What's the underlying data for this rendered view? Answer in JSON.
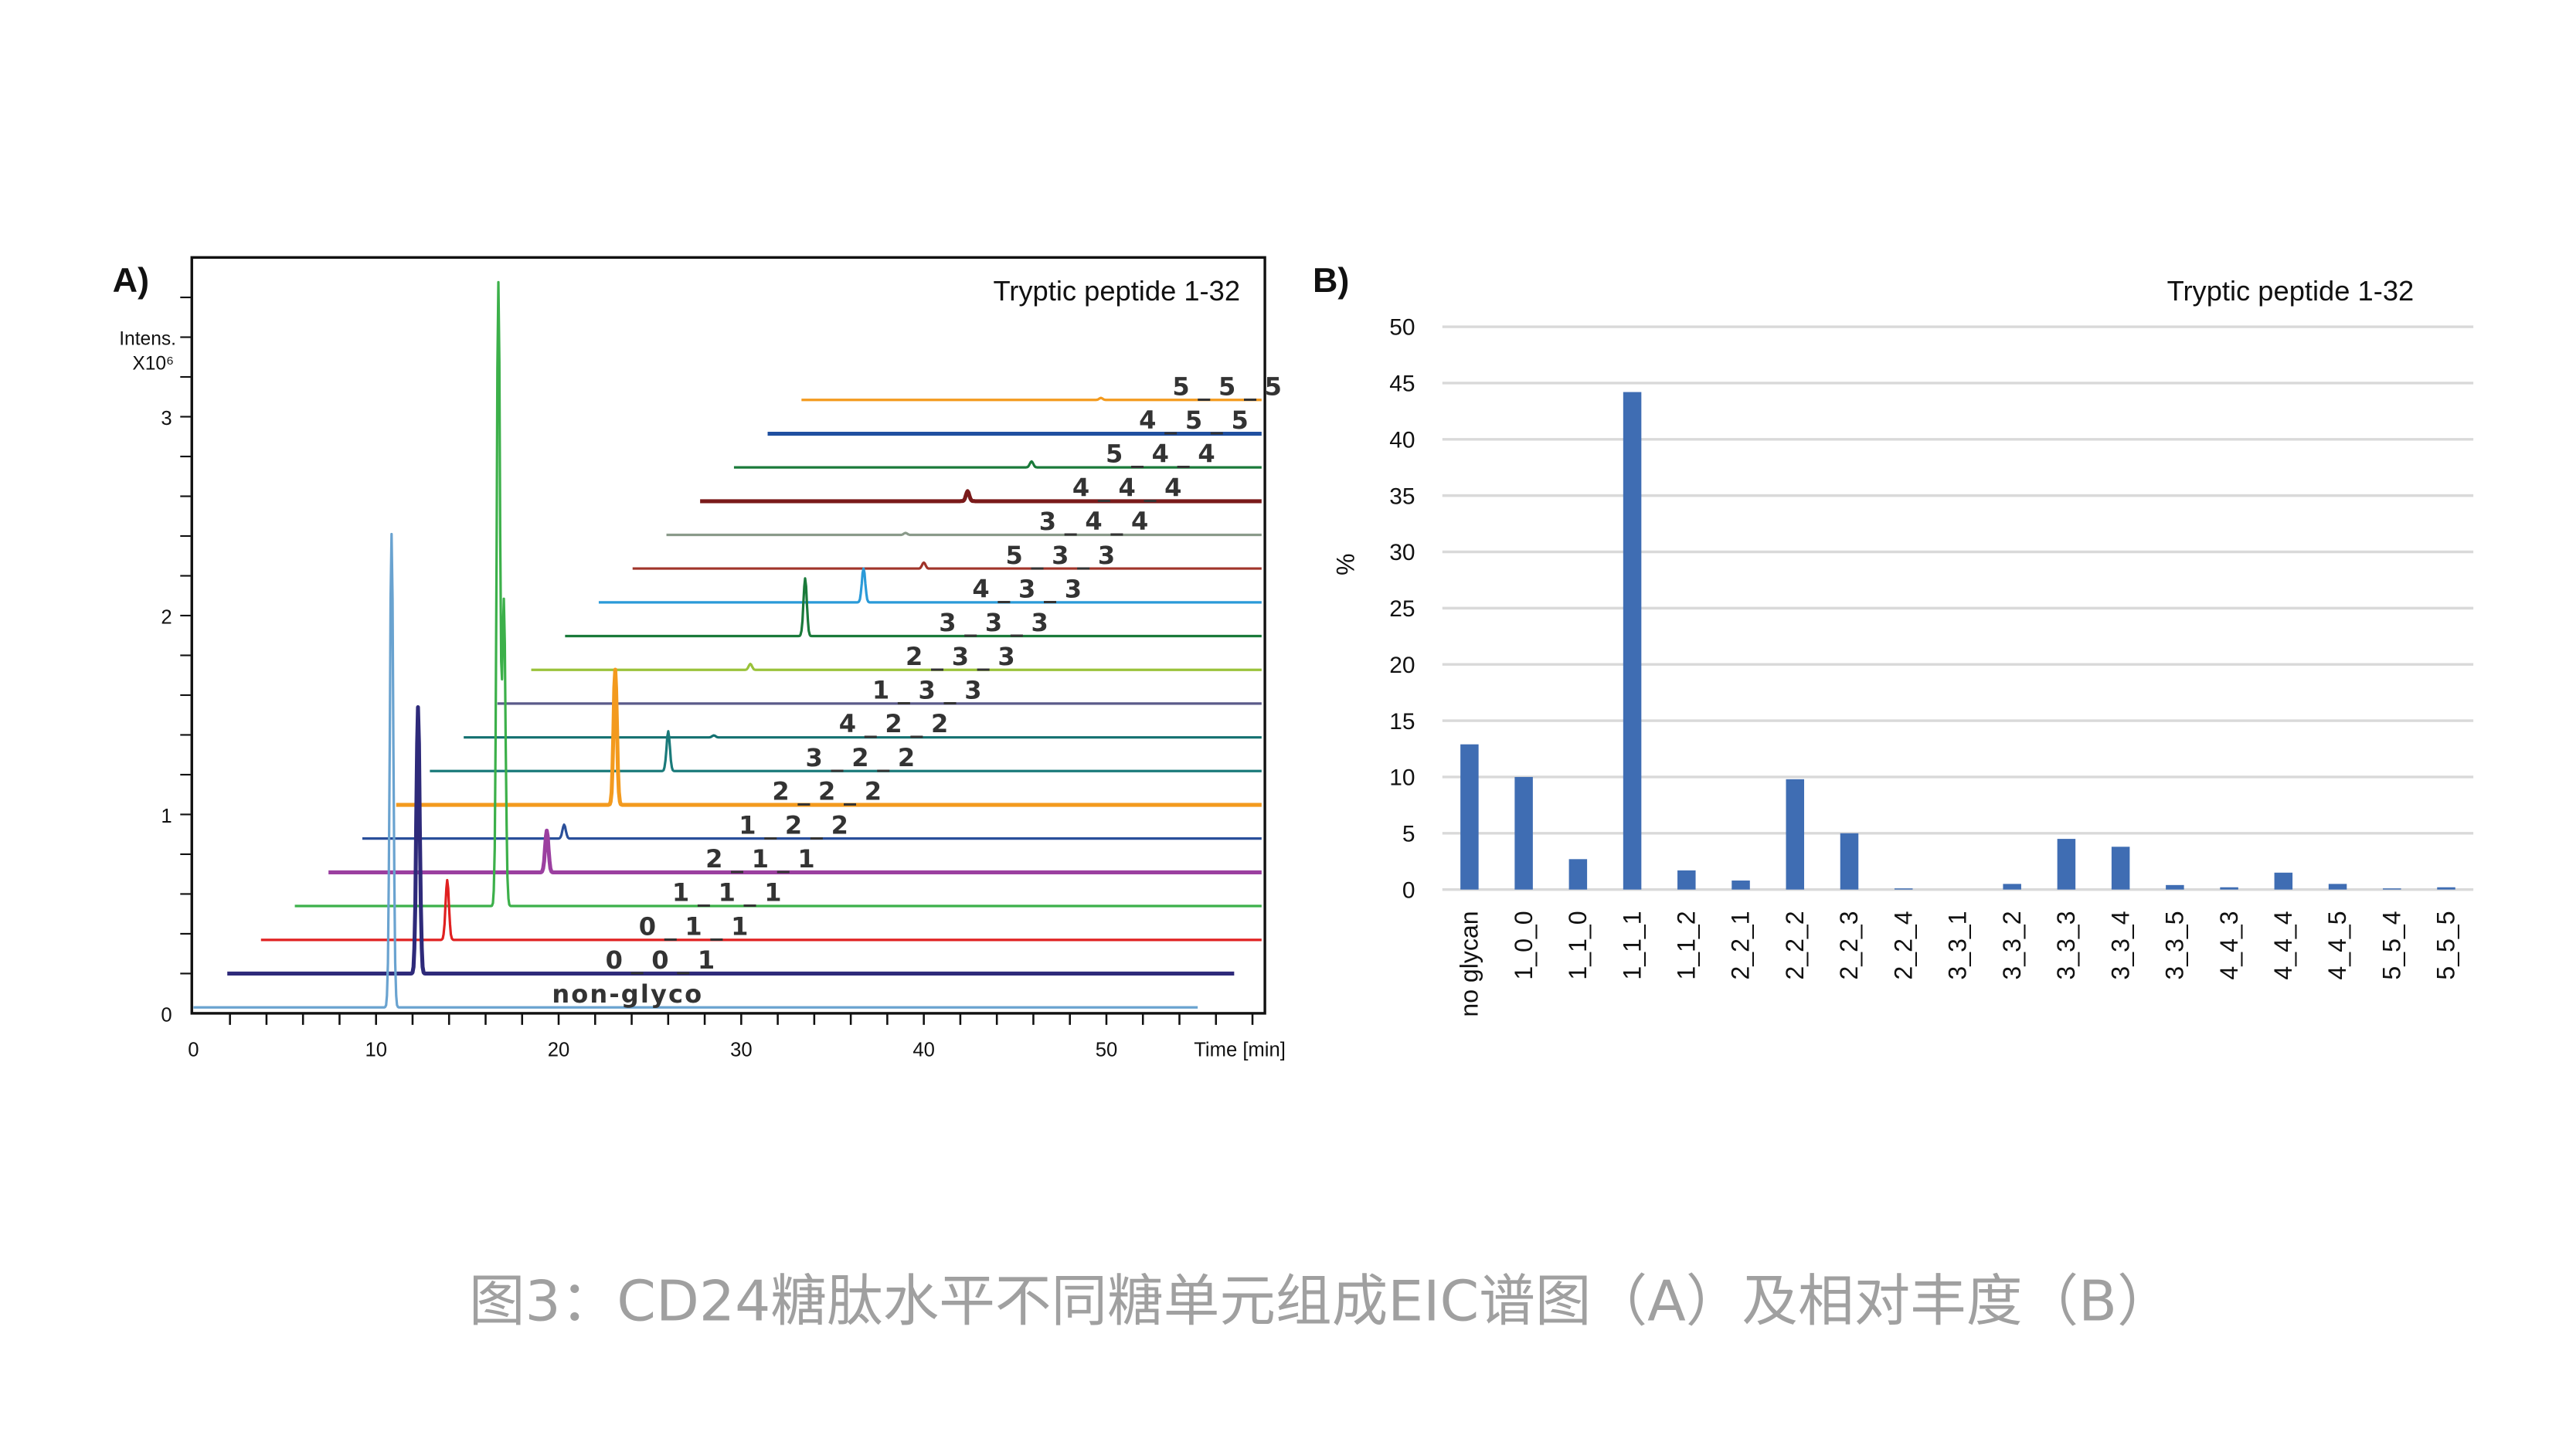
{
  "caption": "图3：CD24糖肽水平不同糖单元组成EIC谱图（A）及相对丰度（B）",
  "chart_data": [
    {
      "type": "line",
      "panel_label": "A)",
      "title": "Tryptic peptide 1-32",
      "ylabel": "Intens.",
      "yunit": "X10⁶",
      "xlabel": "Time [min]",
      "xlim": [
        0,
        58
      ],
      "ylim": [
        0,
        3.7
      ],
      "xticks": [
        0,
        10,
        20,
        30,
        40,
        50
      ],
      "yticks": [
        0,
        1,
        2,
        3
      ],
      "series": [
        {
          "name": "non-glyco",
          "color": "#6aa3d0",
          "peaks": [
            [
              10.85,
              2.38
            ]
          ]
        },
        {
          "name": "0_0_1",
          "color": "#2e2a7a",
          "peaks": [
            [
              12.3,
              1.34
            ]
          ]
        },
        {
          "name": "0_1_1",
          "color": "#e02020",
          "peaks": [
            [
              13.9,
              0.3
            ]
          ]
        },
        {
          "name": "1_1_1",
          "color": "#3cb04a",
          "peaks": [
            [
              16.7,
              3.13
            ],
            [
              17.0,
              1.53
            ]
          ]
        },
        {
          "name": "2_1_1",
          "color": "#9b3fa0",
          "peaks": [
            [
              19.35,
              0.21
            ]
          ]
        },
        {
          "name": "1_2_2",
          "color": "#2a4f9a",
          "peaks": [
            [
              20.3,
              0.07
            ]
          ]
        },
        {
          "name": "2_2_2",
          "color": "#f39a1e",
          "peaks": [
            [
              23.1,
              0.68
            ]
          ]
        },
        {
          "name": "3_2_2",
          "color": "#1a7a7a",
          "peaks": [
            [
              26.0,
              0.2
            ]
          ]
        },
        {
          "name": "4_2_2",
          "color": "#137070",
          "peaks": [
            [
              28.5,
              0.01
            ]
          ]
        },
        {
          "name": "1_3_3",
          "color": "#5a5a8a",
          "peaks": []
        },
        {
          "name": "2_3_3",
          "color": "#9ac23a",
          "peaks": [
            [
              30.5,
              0.03
            ]
          ]
        },
        {
          "name": "3_3_3",
          "color": "#1a7a3a",
          "peaks": [
            [
              33.5,
              0.29
            ]
          ]
        },
        {
          "name": "4_3_3",
          "color": "#2a9ad8",
          "peaks": [
            [
              36.7,
              0.17
            ]
          ]
        },
        {
          "name": "5_3_3",
          "color": "#a0342a",
          "peaks": [
            [
              40.0,
              0.03
            ]
          ]
        },
        {
          "name": "3_4_4",
          "color": "#8a9a8a",
          "peaks": [
            [
              39.0,
              0.01
            ]
          ]
        },
        {
          "name": "4_4_4",
          "color": "#7a1a1a",
          "peaks": [
            [
              42.4,
              0.05
            ]
          ]
        },
        {
          "name": "5_4_4",
          "color": "#1a7a3a",
          "peaks": [
            [
              45.9,
              0.03
            ]
          ]
        },
        {
          "name": "4_5_5",
          "color": "#1f4fa0",
          "peaks": []
        },
        {
          "name": "5_5_5",
          "color": "#f39a1e",
          "peaks": [
            [
              49.7,
              0.01
            ]
          ]
        }
      ]
    },
    {
      "type": "bar",
      "panel_label": "B)",
      "title": "Tryptic peptide 1-32",
      "ylabel": "%",
      "ylim": [
        0,
        50
      ],
      "yticks": [
        0,
        5,
        10,
        15,
        20,
        25,
        30,
        35,
        40,
        45,
        50
      ],
      "grid": true,
      "color": "#3f6db3",
      "categories": [
        "no glycan",
        "1_0_0",
        "1_1_0",
        "1_1_1",
        "1_1_2",
        "2_2_1",
        "2_2_2",
        "2_2_3",
        "2_2_4",
        "3_3_1",
        "3_3_2",
        "3_3_3",
        "3_3_4",
        "3_3_5",
        "4_4_3",
        "4_4_4",
        "4_4_5",
        "5_5_4",
        "5_5_5"
      ],
      "values": [
        12.9,
        10.0,
        2.7,
        44.2,
        1.7,
        0.8,
        9.8,
        5.0,
        0.1,
        0.0,
        0.5,
        4.5,
        3.8,
        0.4,
        0.2,
        1.5,
        0.5,
        0.1,
        0.2
      ]
    }
  ]
}
